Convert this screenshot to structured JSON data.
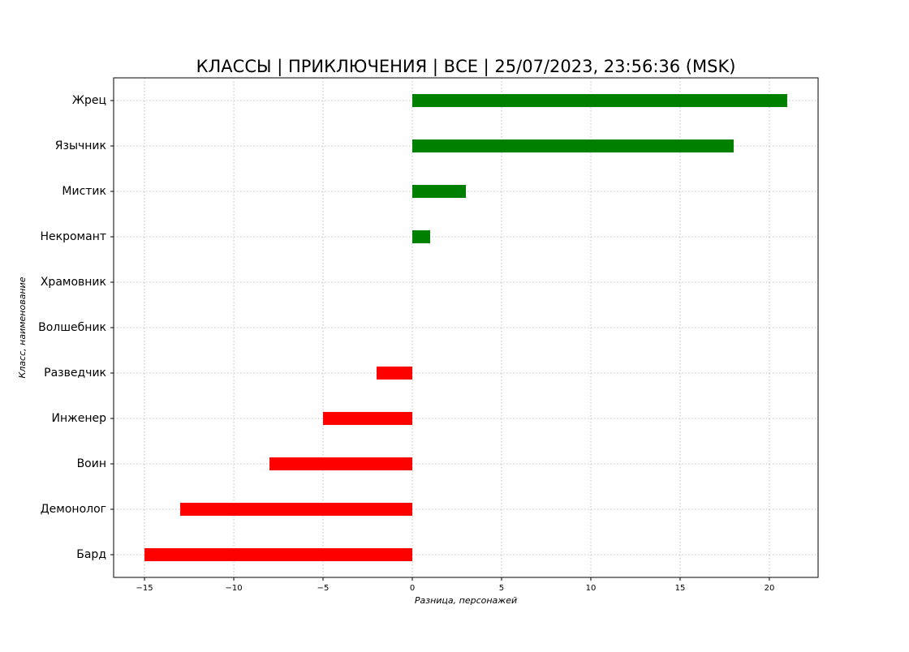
{
  "chart_data": {
    "type": "barh",
    "title": "КЛАССЫ | ПРИКЛЮЧЕНИЯ | ВСЕ | 25/07/2023, 23:56:36 (MSK)",
    "x_label": "Разница, персонажей",
    "y_label": "Класс, наименование",
    "categories": [
      "Жрец",
      "Язычник",
      "Мистик",
      "Некромант",
      "Храмовник",
      "Волшебник",
      "Разведчик",
      "Инженер",
      "Воин",
      "Демонолог",
      "Бард"
    ],
    "values": [
      21,
      18,
      3,
      1,
      0,
      0,
      -2,
      -5,
      -8,
      -13,
      -15
    ],
    "positive_color": "#008000",
    "negative_color": "#ff0000",
    "xlim": [
      -16.73,
      22.73
    ],
    "xticks": [
      {
        "value": -15,
        "label": "−15"
      },
      {
        "value": -10,
        "label": "−10"
      },
      {
        "value": -5,
        "label": "−5"
      },
      0,
      5,
      10,
      15,
      20
    ],
    "grid": true
  }
}
